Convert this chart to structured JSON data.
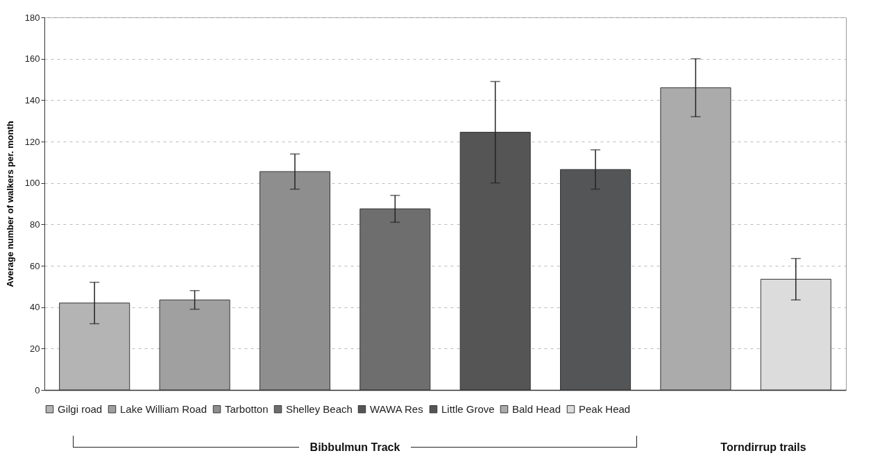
{
  "chart_data": {
    "type": "bar",
    "ylabel": "Average number of walkers per. month",
    "categories": [
      null,
      null,
      null,
      null,
      null,
      null,
      null,
      null
    ],
    "series": [
      {
        "name": "Gilgi road",
        "color": "#b4b4b4",
        "values": [
          42,
          null,
          null,
          null,
          null,
          null,
          null,
          null
        ],
        "errors": [
          10,
          null,
          null,
          null,
          null,
          null,
          null,
          null
        ]
      },
      {
        "name": "Lake William Road",
        "color": "#a0a0a0",
        "values": [
          null,
          43.5,
          null,
          null,
          null,
          null,
          null,
          null
        ],
        "errors": [
          null,
          4.5,
          null,
          null,
          null,
          null,
          null,
          null
        ]
      },
      {
        "name": "Tarbotton",
        "color": "#8e8e8e",
        "values": [
          null,
          null,
          105.5,
          null,
          null,
          null,
          null,
          null
        ],
        "errors": [
          null,
          null,
          8.5,
          null,
          null,
          null,
          null,
          null
        ]
      },
      {
        "name": "Shelley Beach",
        "color": "#6e6e6e",
        "values": [
          null,
          null,
          null,
          87.5,
          null,
          null,
          null,
          null
        ],
        "errors": [
          null,
          null,
          null,
          6.5,
          null,
          null,
          null,
          null
        ]
      },
      {
        "name": "WAWA Res",
        "color": "#555555",
        "values": [
          null,
          null,
          null,
          null,
          124.5,
          null,
          null,
          null
        ],
        "errors": [
          null,
          null,
          null,
          null,
          24.5,
          null,
          null,
          null
        ]
      },
      {
        "name": "Little Grove",
        "color": "#545557",
        "values": [
          null,
          null,
          null,
          null,
          null,
          106.5,
          null,
          null
        ],
        "errors": [
          null,
          null,
          null,
          null,
          null,
          9.5,
          null,
          null
        ]
      },
      {
        "name": "Bald Head",
        "color": "#ababab",
        "values": [
          null,
          null,
          null,
          null,
          null,
          null,
          146,
          null
        ],
        "errors": [
          null,
          null,
          null,
          null,
          null,
          null,
          14,
          null
        ]
      },
      {
        "name": "Peak Head",
        "color": "#dcdcdc",
        "values": [
          null,
          null,
          null,
          null,
          null,
          null,
          null,
          53.5
        ],
        "errors": [
          null,
          null,
          null,
          null,
          null,
          null,
          null,
          10
        ]
      }
    ],
    "ylim": [
      0,
      180
    ],
    "yticks": [
      0,
      20,
      40,
      60,
      80,
      100,
      120,
      140,
      160,
      180
    ],
    "grid": "y",
    "legend": "bottom",
    "annotations": [
      "Bibbulmun Track",
      "Torndirrup trails"
    ]
  }
}
